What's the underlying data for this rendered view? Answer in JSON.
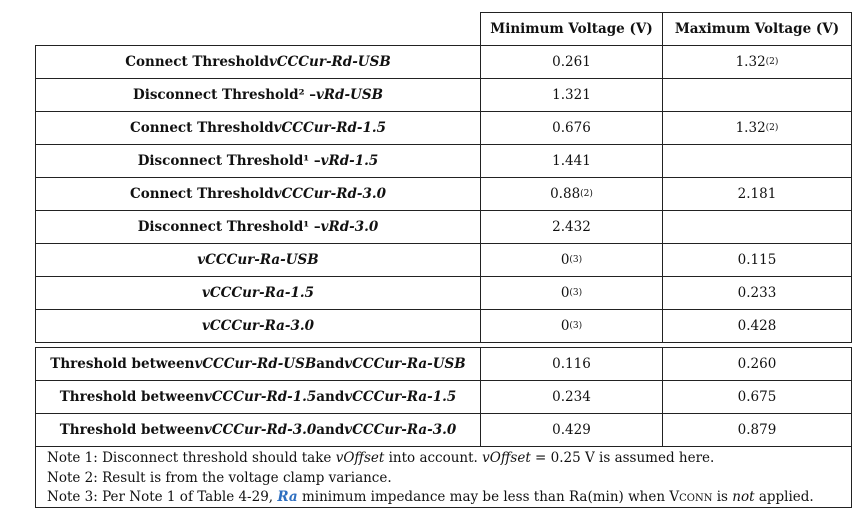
{
  "table": {
    "header": [
      "Minimum Voltage (V)",
      "Maximum Voltage (V)"
    ],
    "groups": [
      [
        {
          "label": [
            {
              "text": "Connect Threshold "
            },
            {
              "text": "vCCCur-Rd-USB",
              "italic": true
            }
          ],
          "min": {
            "text": "0.261"
          },
          "max": {
            "text": "1.32",
            "sup": "(2)"
          }
        },
        {
          "label": [
            {
              "text": "Disconnect Threshold² – "
            },
            {
              "text": "vRd-USB",
              "italic": true
            }
          ],
          "min": {
            "text": "1.321"
          }
        },
        {
          "label": [
            {
              "text": "Connect Threshold "
            },
            {
              "text": "vCCCur-Rd-1.5",
              "italic": true
            }
          ],
          "min": {
            "text": "0.676"
          },
          "max": {
            "text": "1.32",
            "sup": "(2)"
          }
        },
        {
          "label": [
            {
              "text": "Disconnect Threshold¹ – "
            },
            {
              "text": "vRd-1.5",
              "italic": true
            }
          ],
          "min": {
            "text": "1.441"
          }
        },
        {
          "label": [
            {
              "text": "Connect Threshold "
            },
            {
              "text": "vCCCur-Rd-3.0",
              "italic": true
            }
          ],
          "min": {
            "text": "0.88",
            "sup": "(2)"
          },
          "max": {
            "text": "2.181"
          }
        },
        {
          "label": [
            {
              "text": "Disconnect Threshold¹ – "
            },
            {
              "text": "vRd-3.0",
              "italic": true
            }
          ],
          "min": {
            "text": "2.432"
          }
        },
        {
          "label": [
            {
              "text": "vCCCur-Ra-USB",
              "italic": true
            }
          ],
          "min": {
            "text": "0",
            "sup": "(3)"
          },
          "max": {
            "text": "0.115"
          }
        },
        {
          "label": [
            {
              "text": "vCCCur-Ra-1.5",
              "italic": true
            }
          ],
          "min": {
            "text": "0",
            "sup": "(3)"
          },
          "max": {
            "text": "0.233"
          }
        },
        {
          "label": [
            {
              "text": "vCCCur-Ra-3.0",
              "italic": true
            }
          ],
          "min": {
            "text": "0",
            "sup": "(3)"
          },
          "max": {
            "text": "0.428"
          }
        }
      ],
      [
        {
          "label": [
            {
              "text": "Threshold between "
            },
            {
              "text": "vCCCur-Rd-USB",
              "italic": true
            },
            {
              "text": " and "
            },
            {
              "text": "vCCCur-Ra-USB",
              "italic": true
            }
          ],
          "min": {
            "text": "0.116"
          },
          "max": {
            "text": "0.260"
          }
        },
        {
          "label": [
            {
              "text": "Threshold between "
            },
            {
              "text": "vCCCur-Rd-1.5",
              "italic": true
            },
            {
              "text": " and "
            },
            {
              "text": "vCCCur-Ra-1.5",
              "italic": true
            }
          ],
          "min": {
            "text": "0.234"
          },
          "max": {
            "text": "0.675"
          }
        },
        {
          "label": [
            {
              "text": "Threshold between "
            },
            {
              "text": "vCCCur-Rd-3.0",
              "italic": true
            },
            {
              "text": " and "
            },
            {
              "text": "vCCCur-Ra-3.0",
              "italic": true
            }
          ],
          "min": {
            "text": "0.429"
          },
          "max": {
            "text": "0.879"
          }
        }
      ]
    ]
  },
  "notes": [
    [
      {
        "text": "Note 1: Disconnect threshold should take "
      },
      {
        "text": "vOffset",
        "italic": true
      },
      {
        "text": " into account.  "
      },
      {
        "text": "vOffset",
        "italic": true
      },
      {
        "text": " = 0.25 V is assumed here."
      }
    ],
    [
      {
        "text": "Note 2: Result is from the voltage clamp variance."
      }
    ],
    [
      {
        "text": "Note 3: Per Note 1 of Table 4-29, "
      },
      {
        "text": "Ra",
        "italic": true,
        "bold": true,
        "color": "#2e6fc0"
      },
      {
        "text": " minimum impedance may be less than Ra(min) when V"
      },
      {
        "text": "CONN",
        "smallcaps": true
      },
      {
        "text": " is "
      },
      {
        "text": "not",
        "italic": true
      },
      {
        "text": " applied."
      }
    ]
  ]
}
